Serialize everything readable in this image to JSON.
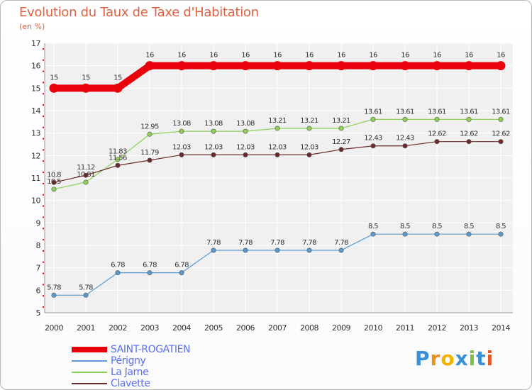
{
  "chart_data": {
    "type": "line",
    "title": "Evolution du Taux de Taxe d'Habitation",
    "subtitle": "(en %)",
    "xlabel": "",
    "ylabel": "",
    "ylim": [
      5,
      17
    ],
    "yticks": [
      "5",
      "6",
      "7",
      "8",
      "9",
      "10",
      "11",
      "12",
      "13",
      "14",
      "15",
      "16",
      "17"
    ],
    "categories": [
      "2000",
      "2001",
      "2002",
      "2003",
      "2004",
      "2005",
      "2006",
      "2007",
      "2008",
      "2009",
      "2010",
      "2011",
      "2012",
      "2013",
      "2014"
    ],
    "series": [
      {
        "name": "SAINT-ROGATIEN",
        "color": "#e8000b",
        "values": [
          15,
          15,
          15,
          16,
          16,
          16,
          16,
          16,
          16,
          16,
          16,
          16,
          16,
          16,
          16
        ],
        "labels": [
          "15",
          "15",
          "15",
          "16",
          "16",
          "16",
          "16",
          "16",
          "16",
          "16",
          "16",
          "16",
          "16",
          "16",
          "16"
        ]
      },
      {
        "name": "Périgny",
        "color": "#5a9ad0",
        "values": [
          5.78,
          5.78,
          6.78,
          6.78,
          6.78,
          7.78,
          7.78,
          7.78,
          7.78,
          7.78,
          8.5,
          8.5,
          8.5,
          8.5,
          8.5
        ],
        "labels": [
          "5.78",
          "5.78",
          "6.78",
          "6.78",
          "6.78",
          "7.78",
          "7.78",
          "7.78",
          "7.78",
          "7.78",
          "8.5",
          "8.5",
          "8.5",
          "8.5",
          "8.5"
        ]
      },
      {
        "name": "La Jarne",
        "color": "#8ed155",
        "values": [
          10.5,
          10.81,
          11.83,
          12.95,
          13.08,
          13.08,
          13.08,
          13.21,
          13.21,
          13.21,
          13.61,
          13.61,
          13.61,
          13.61,
          13.61
        ],
        "labels": [
          "10.5",
          "10.81",
          "11.83",
          "12.95",
          "13.08",
          "13.08",
          "13.08",
          "13.21",
          "13.21",
          "13.21",
          "13.61",
          "13.61",
          "13.61",
          "13.61",
          "13.61"
        ]
      },
      {
        "name": "Clavette",
        "color": "#6b2a2a",
        "values": [
          10.8,
          11.12,
          11.56,
          11.79,
          12.03,
          12.03,
          12.03,
          12.03,
          12.03,
          12.27,
          12.43,
          12.43,
          12.62,
          12.62,
          12.62
        ],
        "labels": [
          "10.8",
          "11.12",
          "11.56",
          "11.79",
          "12.03",
          "12.03",
          "12.03",
          "12.03",
          "12.03",
          "12.27",
          "12.43",
          "12.43",
          "12.62",
          "12.62",
          "12.62"
        ]
      }
    ],
    "grid": true,
    "legend_position": "bottom-left"
  },
  "logo": {
    "text": "Proxiti"
  }
}
